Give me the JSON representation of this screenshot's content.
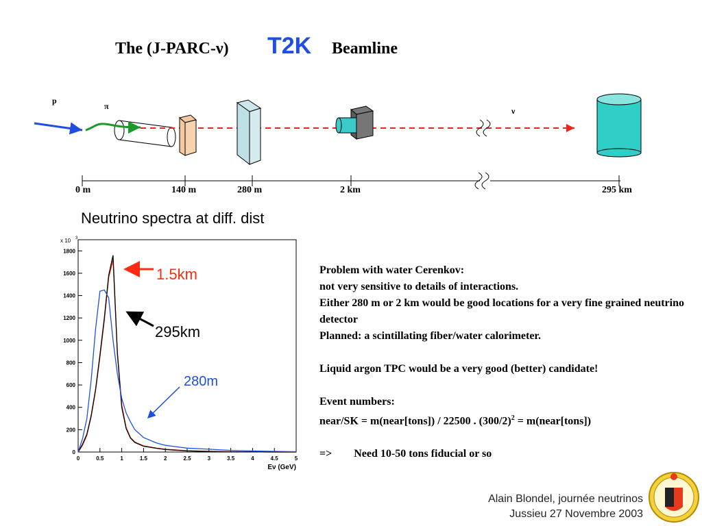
{
  "slide": {
    "title_pre": "The (J-PARC-ν)",
    "title_t2k": "T2K",
    "title_post": "Beamline",
    "accent_blue": "#1f4fe0",
    "accent_red": "#ff2a10"
  },
  "beamline": {
    "label_p": "p",
    "label_pi": "π",
    "label_nu": "ν",
    "distances": [
      "0 m",
      "140 m",
      "280 m",
      "2 km",
      "295 km"
    ]
  },
  "spectra": {
    "heading": "Neutrino spectra at diff. dist",
    "curve_labels": {
      "near_15": "1.5km",
      "far_295": "295km",
      "near_280": "280m"
    }
  },
  "chart_data": {
    "type": "line",
    "title": "",
    "xlabel": "Eν (GeV)",
    "ylabel": "",
    "y_multiplier_label": "x 10",
    "y_multiplier_exp": "3",
    "xlim": [
      0,
      5
    ],
    "ylim": [
      0,
      1900
    ],
    "x_ticks": [
      "0",
      "0.5",
      "1",
      "1.5",
      "2",
      "2.5",
      "3",
      "3.5",
      "4",
      "4.5",
      "5"
    ],
    "y_ticks": [
      "0",
      "200",
      "400",
      "600",
      "800",
      "1000",
      "1200",
      "1400",
      "1600",
      "1800"
    ],
    "x": [
      0.0,
      0.1,
      0.2,
      0.3,
      0.4,
      0.5,
      0.6,
      0.7,
      0.8,
      0.9,
      1.0,
      1.1,
      1.2,
      1.3,
      1.5,
      1.8,
      2.0,
      2.5,
      3.0,
      3.5,
      4.0,
      4.5,
      5.0
    ],
    "series": [
      {
        "name": "1.5km",
        "color": "#ff2a10",
        "values": [
          0,
          60,
          150,
          320,
          550,
          850,
          1180,
          1560,
          1720,
          900,
          420,
          220,
          130,
          90,
          55,
          35,
          25,
          12,
          6,
          3,
          1,
          0,
          0
        ]
      },
      {
        "name": "295km",
        "color": "#000000",
        "values": [
          0,
          70,
          160,
          330,
          560,
          870,
          1200,
          1580,
          1760,
          880,
          400,
          210,
          125,
          85,
          52,
          33,
          22,
          10,
          5,
          2,
          1,
          0,
          0
        ]
      },
      {
        "name": "280m",
        "color": "#1f4fe0",
        "values": [
          0,
          120,
          300,
          650,
          1100,
          1440,
          1450,
          1380,
          1000,
          700,
          480,
          350,
          270,
          200,
          130,
          80,
          60,
          35,
          25,
          15,
          10,
          6,
          3
        ]
      }
    ]
  },
  "problem": {
    "heading": "Problem with water Cerenkov:",
    "line1": " not very sensitive to details of interactions.",
    "line2": "Either 280 m or 2 km would be good locations for a very fine grained neutrino detector",
    "line3": "Planned: a scintillating fiber/water calorimeter.",
    "line4": "Liquid argon TPC would be a very good (better) candidate!",
    "line5": "Event numbers:",
    "line6_pre": "near/SK = m(near[tons]) / 22500 . (300/2)",
    "line6_sup": "2",
    "line6_post": "  = m(near[tons])",
    "line7": "=>        Need 10-50 tons fiducial or so"
  },
  "footer": {
    "author": "Alain Blondel, journée neutrinos",
    "venue": "Jussieu 27 Novembre 2003"
  }
}
